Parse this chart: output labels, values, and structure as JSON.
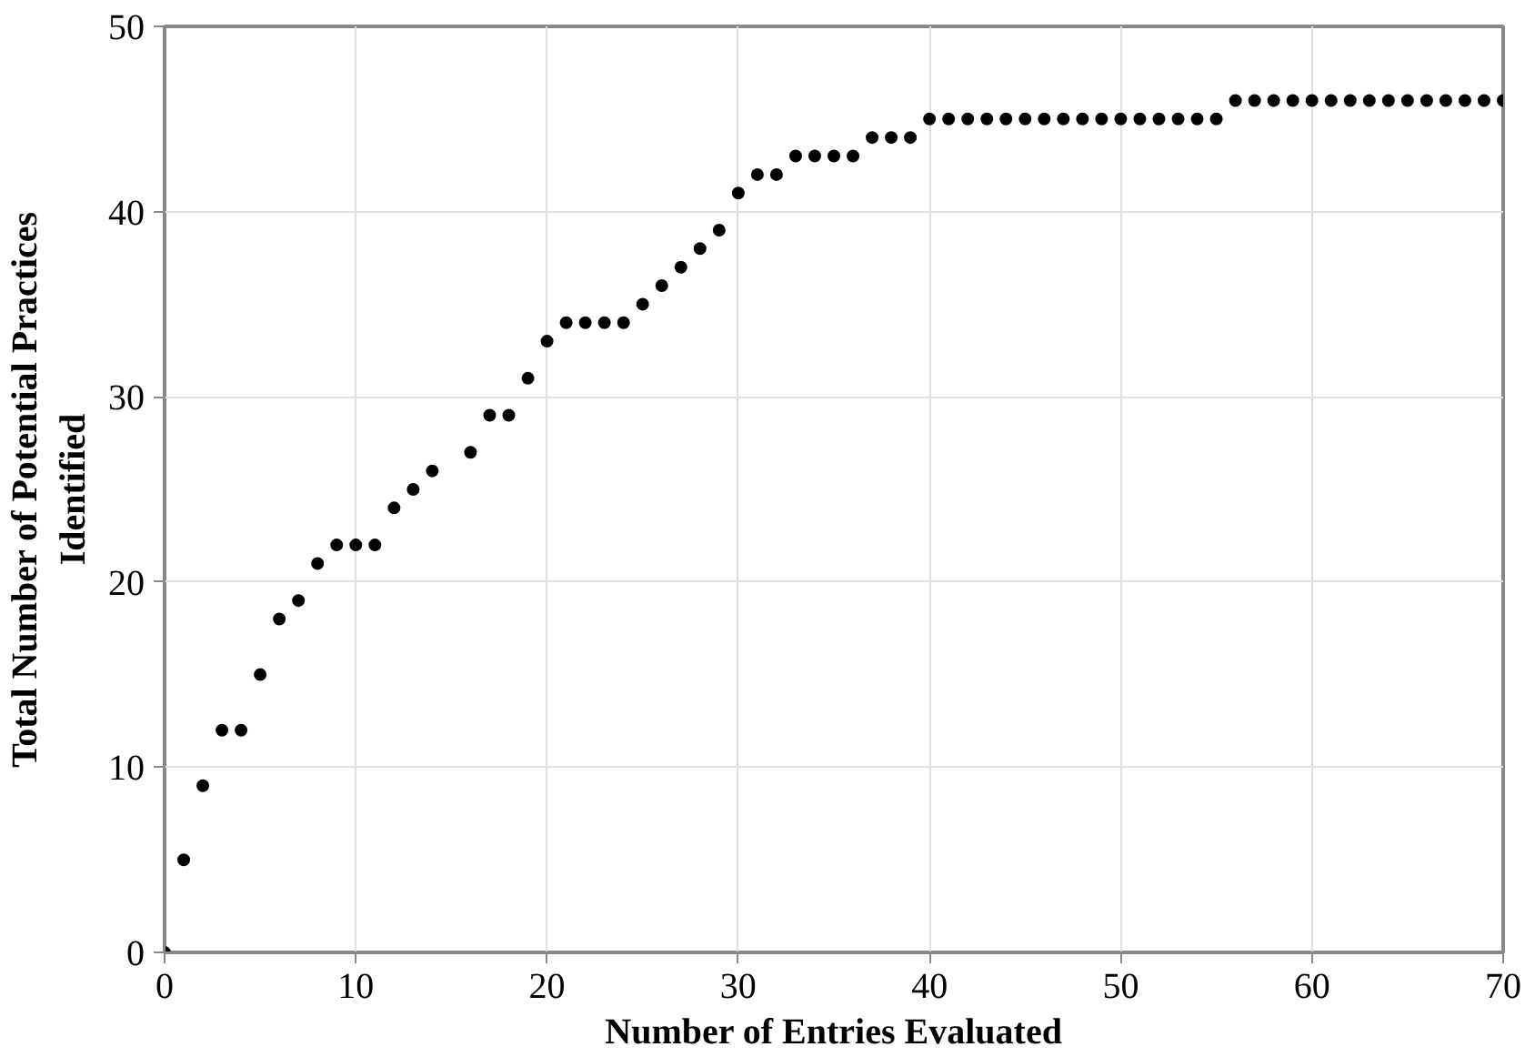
{
  "chart_data": {
    "type": "scatter",
    "xlabel": "Number of Entries Evaluated",
    "ylabel": "Total Number of Potential Practices Identified",
    "x": [
      0,
      1,
      2,
      3,
      4,
      5,
      6,
      7,
      8,
      9,
      10,
      11,
      12,
      13,
      14,
      16,
      17,
      18,
      19,
      20,
      21,
      22,
      23,
      24,
      25,
      26,
      27,
      28,
      29,
      30,
      31,
      32,
      33,
      34,
      35,
      36,
      37,
      38,
      39,
      40,
      41,
      42,
      43,
      44,
      45,
      46,
      47,
      48,
      49,
      50,
      51,
      52,
      53,
      54,
      55,
      56,
      57,
      58,
      59,
      60,
      61,
      62,
      63,
      64,
      65,
      66,
      67,
      68,
      69,
      70
    ],
    "values": [
      0,
      5,
      9,
      12,
      12,
      15,
      18,
      19,
      21,
      22,
      22,
      22,
      24,
      25,
      26,
      27,
      29,
      29,
      31,
      33,
      34,
      34,
      34,
      34,
      35,
      36,
      37,
      38,
      39,
      41,
      42,
      42,
      43,
      43,
      43,
      43,
      44,
      44,
      44,
      45,
      45,
      45,
      45,
      45,
      45,
      45,
      45,
      45,
      45,
      45,
      45,
      45,
      45,
      45,
      45,
      46,
      46,
      46,
      46,
      46,
      46,
      46,
      46,
      46,
      46,
      46,
      46,
      46,
      46,
      46
    ],
    "color": "#000000",
    "marker": "circle",
    "xlim": [
      0,
      70
    ],
    "ylim": [
      0,
      50
    ],
    "xticks": [
      0,
      10,
      20,
      30,
      40,
      50,
      60,
      70
    ],
    "yticks": [
      0,
      10,
      20,
      30,
      40,
      50
    ],
    "grid": true
  }
}
